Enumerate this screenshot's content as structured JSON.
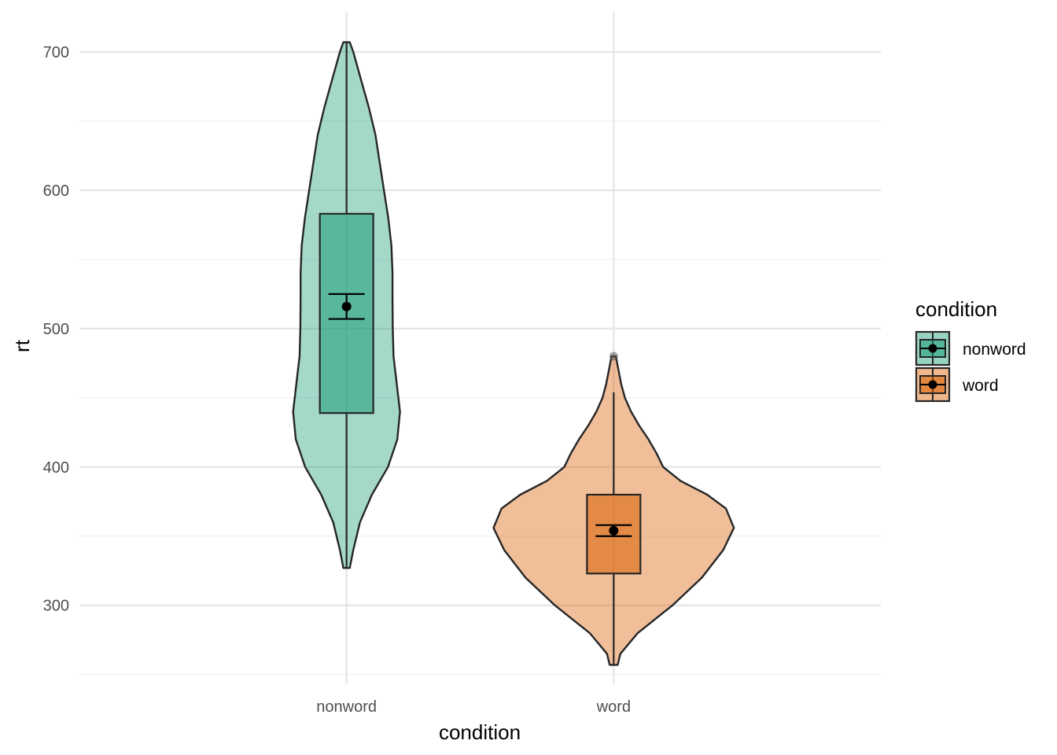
{
  "chart_data": {
    "type": "violin",
    "xlabel": "condition",
    "ylabel": "rt",
    "categories": [
      "nonword",
      "word"
    ],
    "y_ticks": [
      300,
      400,
      500,
      600,
      700
    ],
    "y_tick_labels": [
      "300",
      "400",
      "500",
      "600",
      "700"
    ],
    "ylim": [
      243,
      729
    ],
    "grid": true,
    "legend": {
      "title": "condition",
      "position": "right",
      "entries": [
        "nonword",
        "word"
      ]
    },
    "colors": {
      "nonword": "#1b9e77",
      "word": "#d95f02"
    },
    "series": [
      {
        "name": "nonword",
        "violin": {
          "rt": [
            327,
            340,
            360,
            380,
            400,
            420,
            440,
            460,
            480,
            500,
            520,
            540,
            560,
            580,
            600,
            620,
            640,
            660,
            680,
            700,
            707
          ],
          "half_width": [
            0.012,
            0.025,
            0.05,
            0.095,
            0.155,
            0.19,
            0.2,
            0.188,
            0.176,
            0.173,
            0.172,
            0.172,
            0.168,
            0.156,
            0.14,
            0.124,
            0.108,
            0.083,
            0.054,
            0.025,
            0.012
          ]
        },
        "box": {
          "q1": 439,
          "median": 516,
          "q3": 583,
          "lower_whisker": 327,
          "upper_whisker": 707
        },
        "mean": 516,
        "ci": [
          507,
          525
        ],
        "outliers": []
      },
      {
        "name": "word",
        "violin": {
          "rt": [
            257,
            265,
            280,
            300,
            320,
            340,
            356,
            370,
            380,
            390,
            400,
            410,
            420,
            430,
            440,
            450,
            460,
            470,
            480
          ],
          "half_width": [
            0.015,
            0.025,
            0.09,
            0.22,
            0.33,
            0.41,
            0.45,
            0.42,
            0.35,
            0.25,
            0.185,
            0.16,
            0.13,
            0.095,
            0.065,
            0.042,
            0.028,
            0.018,
            0.008
          ]
        },
        "box": {
          "q1": 323,
          "median": 354,
          "q3": 380,
          "lower_whisker": 257,
          "upper_whisker": 454
        },
        "mean": 354,
        "ci": [
          350,
          358
        ],
        "outliers": [
          480
        ]
      }
    ]
  }
}
